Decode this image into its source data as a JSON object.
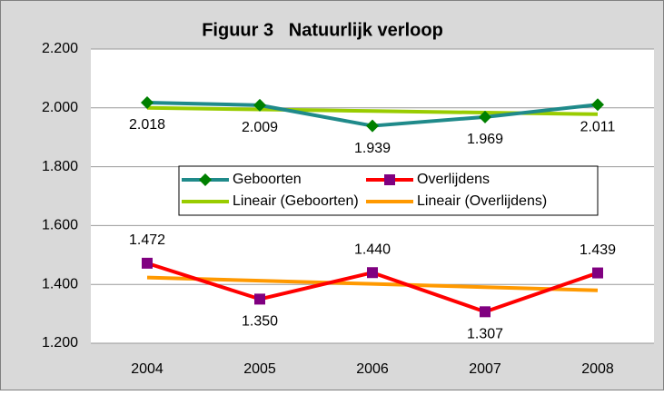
{
  "chart_data": {
    "type": "line",
    "title": "Figuur 3   Natuurlijk verloop",
    "categories": [
      "2004",
      "2005",
      "2006",
      "2007",
      "2008"
    ],
    "ylim": [
      1200,
      2200
    ],
    "yticks": [
      {
        "value": 1200,
        "label": "1.200"
      },
      {
        "value": 1400,
        "label": "1.400"
      },
      {
        "value": 1600,
        "label": "1.600"
      },
      {
        "value": 1800,
        "label": "1.800"
      },
      {
        "value": 2000,
        "label": "2.000"
      },
      {
        "value": 2200,
        "label": "2.200"
      }
    ],
    "grid": true,
    "series": [
      {
        "name": "Geboorten",
        "color": "#1f8a8a",
        "marker": "diamond",
        "marker_color": "#008000",
        "values": [
          2018,
          2009,
          1939,
          1969,
          2011
        ],
        "value_labels": [
          "2.018",
          "2.009",
          "1.939",
          "1.969",
          "2.011"
        ]
      },
      {
        "name": "Overlijdens",
        "color": "#ff0000",
        "marker": "square",
        "marker_color": "#800080",
        "values": [
          1472,
          1350,
          1440,
          1307,
          1439
        ],
        "value_labels": [
          "1.472",
          "1.350",
          "1.440",
          "1.307",
          "1.439"
        ]
      },
      {
        "name": "Lineair (Geboorten)",
        "color": "#99cc00",
        "marker": "none",
        "values": [
          2000.0,
          1994.6,
          1989.2,
          1983.8,
          1978.4
        ]
      },
      {
        "name": "Lineair (Overlijdens)",
        "color": "#ff9900",
        "marker": "none",
        "values": [
          1423.4,
          1412.5,
          1401.6,
          1390.7,
          1379.8
        ]
      }
    ]
  }
}
